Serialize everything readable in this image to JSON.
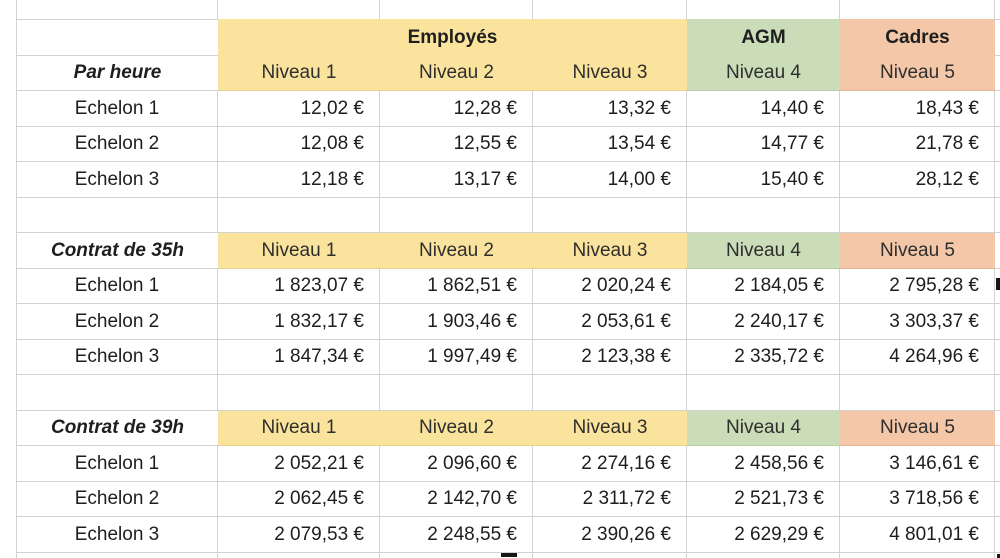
{
  "colors": {
    "header_yellow": "#FAE39D",
    "header_green": "#CADCB8",
    "header_salmon": "#F3C7A7",
    "gridline": "#D2D2D2",
    "text": "#1E1E1E"
  },
  "column_groups": [
    {
      "label": "Employés",
      "span": 3
    },
    {
      "label": "AGM",
      "span": 1
    },
    {
      "label": "Cadres",
      "span": 1
    }
  ],
  "level_headers": [
    "Niveau 1",
    "Niveau 2",
    "Niveau 3",
    "Niveau 4",
    "Niveau 5"
  ],
  "sections": [
    {
      "title": "Par heure",
      "rows": [
        {
          "label": "Echelon 1",
          "values": [
            "12,02 €",
            "12,28 €",
            "13,32 €",
            "14,40 €",
            "18,43 €"
          ]
        },
        {
          "label": "Echelon 2",
          "values": [
            "12,08 €",
            "12,55 €",
            "13,54 €",
            "14,77 €",
            "21,78 €"
          ]
        },
        {
          "label": "Echelon 3",
          "values": [
            "12,18 €",
            "13,17 €",
            "14,00 €",
            "15,40 €",
            "28,12 €"
          ]
        }
      ]
    },
    {
      "title": "Contrat de 35h",
      "rows": [
        {
          "label": "Echelon 1",
          "values": [
            "1 823,07 €",
            "1 862,51 €",
            "2 020,24 €",
            "2 184,05 €",
            "2 795,28 €"
          ]
        },
        {
          "label": "Echelon 2",
          "values": [
            "1 832,17 €",
            "1 903,46 €",
            "2 053,61 €",
            "2 240,17 €",
            "3 303,37 €"
          ]
        },
        {
          "label": "Echelon 3",
          "values": [
            "1 847,34 €",
            "1 997,49 €",
            "2 123,38 €",
            "2 335,72 €",
            "4 264,96 €"
          ]
        }
      ]
    },
    {
      "title": "Contrat de 39h",
      "rows": [
        {
          "label": "Echelon 1",
          "values": [
            "2 052,21 €",
            "2 096,60 €",
            "2 274,16 €",
            "2 458,56 €",
            "3 146,61 €"
          ]
        },
        {
          "label": "Echelon 2",
          "values": [
            "2 062,45 €",
            "2 142,70 €",
            "2 311,72 €",
            "2 521,73 €",
            "3 718,56 €"
          ]
        },
        {
          "label": "Echelon 3",
          "values": [
            "2 079,53 €",
            "2 248,55 €",
            "2 390,26 €",
            "2 629,29 €",
            "4 801,01 €"
          ]
        }
      ]
    }
  ]
}
